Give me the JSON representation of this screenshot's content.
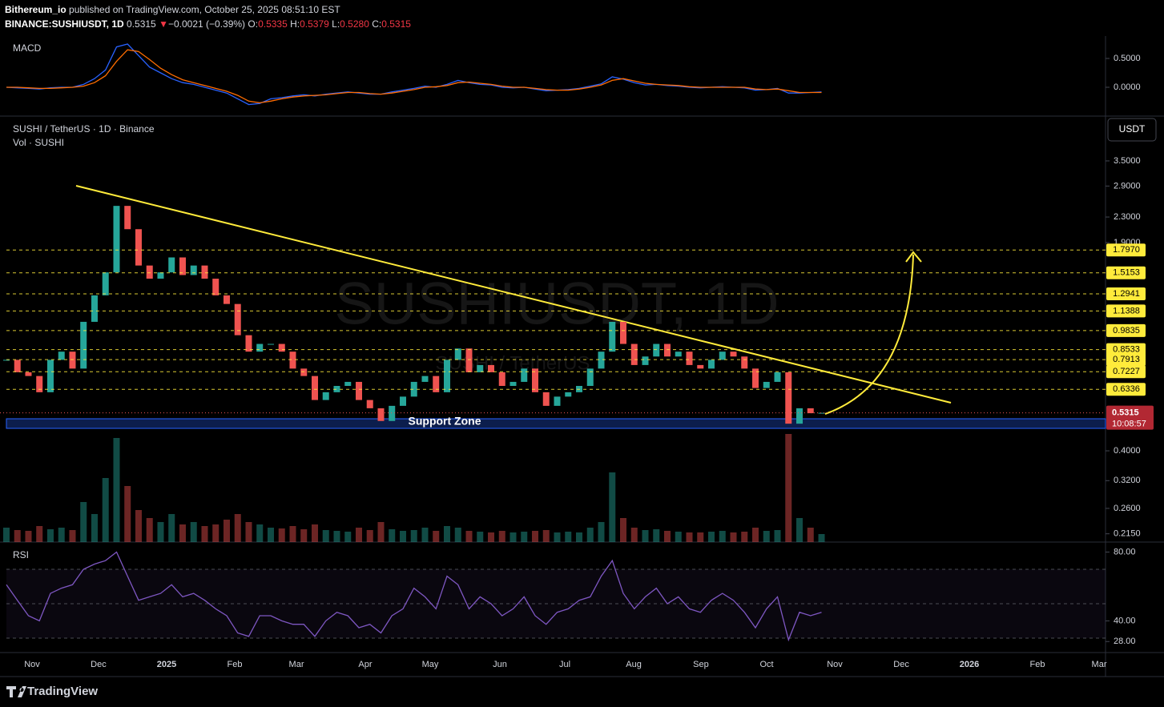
{
  "header": {
    "author": "Bithereum_io",
    "published": "published on TradingView.com, October 25, 2025 08:51:10 EST",
    "symbol": "BINANCE:SUSHIUSDT, 1D",
    "last": "0.5315",
    "change_arrow": "▼",
    "change": "−0.0021 (−0.39%)",
    "ohlc": [
      {
        "label": "O:",
        "value": "0.5335"
      },
      {
        "label": "H:",
        "value": "0.5379"
      },
      {
        "label": "L:",
        "value": "0.5280"
      },
      {
        "label": "C:",
        "value": "0.5315"
      }
    ]
  },
  "watermark": {
    "title": "SUSHIUSDT, 1D",
    "subtitle": "SUSHI / TetherUS"
  },
  "footer": {
    "brand": "TradingView"
  },
  "chart_data": [
    {
      "type": "candlestick",
      "title": "SUSHI / TetherUS · 1D · Binance",
      "currency": "USDT",
      "log_scale": true,
      "colors": {
        "up": "#26a69a",
        "down": "#ef5350"
      },
      "values": [
        0.79,
        0.72,
        0.7,
        0.62,
        0.79,
        0.84,
        0.74,
        1.05,
        1.28,
        1.52,
        2.5,
        2.1,
        1.6,
        1.45,
        1.52,
        1.7,
        1.49,
        1.6,
        1.45,
        1.28,
        1.2,
        0.95,
        0.84,
        0.89,
        0.89,
        0.84,
        0.74,
        0.7,
        0.585,
        0.62,
        0.65,
        0.67,
        0.585,
        0.55,
        0.5,
        0.56,
        0.6,
        0.67,
        0.7,
        0.62,
        0.79,
        0.86,
        0.72,
        0.76,
        0.72,
        0.65,
        0.67,
        0.74,
        0.62,
        0.56,
        0.6,
        0.62,
        0.65,
        0.74,
        0.84,
        1.05,
        0.89,
        0.76,
        0.81,
        0.89,
        0.81,
        0.84,
        0.76,
        0.74,
        0.79,
        0.84,
        0.81,
        0.74,
        0.64,
        0.67,
        0.72,
        0.49,
        0.55,
        0.53,
        0.5315
      ],
      "xlim": [
        -0.58,
        99.78
      ],
      "xticks": [
        {
          "value": 2.33,
          "label": "Nov"
        },
        {
          "value": 8.36,
          "label": "Dec"
        },
        {
          "value": 14.55,
          "label": "2025"
        },
        {
          "value": 20.73,
          "label": "Feb"
        },
        {
          "value": 26.33,
          "label": "Mar"
        },
        {
          "value": 32.58,
          "label": "Apr"
        },
        {
          "value": 38.47,
          "label": "May"
        },
        {
          "value": 44.8,
          "label": "Jun"
        },
        {
          "value": 50.69,
          "label": "Jul"
        },
        {
          "value": 56.95,
          "label": "Aug"
        },
        {
          "value": 63.05,
          "label": "Sep"
        },
        {
          "value": 69.02,
          "label": "Oct"
        },
        {
          "value": 75.2,
          "label": "Nov"
        },
        {
          "value": 81.24,
          "label": "Dec"
        },
        {
          "value": 87.42,
          "label": "2026"
        },
        {
          "value": 93.6,
          "label": "Feb"
        },
        {
          "value": 99.2,
          "label": "Mar"
        }
      ],
      "ylim": [
        0.2021,
        4.894
      ],
      "yticks": [
        {
          "value": 3.5,
          "label": "3.5000"
        },
        {
          "value": 2.9,
          "label": "2.9000"
        },
        {
          "value": 2.3,
          "label": "2.3000"
        },
        {
          "value": 1.9,
          "label": "1.9000"
        },
        {
          "value": 0.4,
          "label": "0.4000"
        },
        {
          "value": 0.32,
          "label": "0.3200"
        },
        {
          "value": 0.26,
          "label": "0.2600"
        },
        {
          "value": 0.215,
          "label": "0.2150"
        }
      ],
      "level_color": "#ffeb3b",
      "levels": [
        {
          "value": 1.797,
          "label": "1.7970"
        },
        {
          "value": 1.5153,
          "label": "1.5153"
        },
        {
          "value": 1.2941,
          "label": "1.2941"
        },
        {
          "value": 1.1388,
          "label": "1.1388"
        },
        {
          "value": 0.9835,
          "label": "0.9835"
        },
        {
          "value": 0.8533,
          "label": "0.8533"
        },
        {
          "value": 0.7913,
          "label": "0.7913"
        },
        {
          "value": 0.7227,
          "label": "0.7227"
        },
        {
          "value": 0.6336,
          "label": "0.6336"
        }
      ],
      "last_price": {
        "value": 0.5315,
        "label": "0.5315"
      },
      "countdown": "10:08:57",
      "annotation": "Support Zone"
    },
    {
      "type": "bar",
      "title": "Vol · SUSHI",
      "ylim": [
        0,
        140
      ],
      "values": [
        18,
        15,
        14,
        20,
        16,
        18,
        15,
        50,
        35,
        80,
        130,
        70,
        40,
        30,
        25,
        35,
        22,
        25,
        20,
        22,
        28,
        35,
        25,
        22,
        18,
        17,
        20,
        16,
        22,
        15,
        14,
        13,
        18,
        15,
        25,
        16,
        14,
        15,
        18,
        14,
        20,
        18,
        14,
        13,
        12,
        14,
        12,
        13,
        14,
        15,
        12,
        13,
        12,
        18,
        25,
        87,
        30,
        18,
        15,
        16,
        14,
        13,
        12,
        12,
        13,
        14,
        12,
        13,
        18,
        14,
        15,
        135,
        30,
        18,
        10
      ]
    },
    {
      "type": "line",
      "title": "MACD",
      "ylim": [
        -0.5,
        0.889
      ],
      "yticks": [
        {
          "value": 0.5,
          "label": "0.5000"
        },
        {
          "value": 0,
          "label": "0.0000"
        }
      ],
      "series": [
        {
          "color": "#2962ff",
          "values": [
            0,
            -0.01,
            -0.02,
            -0.03,
            -0.01,
            0,
            0,
            0.05,
            0.15,
            0.3,
            0.7,
            0.75,
            0.55,
            0.35,
            0.25,
            0.15,
            0.08,
            0.05,
            0,
            -0.05,
            -0.1,
            -0.2,
            -0.3,
            -0.28,
            -0.2,
            -0.18,
            -0.15,
            -0.13,
            -0.15,
            -0.12,
            -0.1,
            -0.08,
            -0.1,
            -0.12,
            -0.12,
            -0.08,
            -0.05,
            -0.02,
            0.02,
            0,
            0.05,
            0.12,
            0.08,
            0.05,
            0.04,
            0,
            -0.01,
            0,
            -0.03,
            -0.06,
            -0.05,
            -0.04,
            -0.02,
            0.02,
            0.06,
            0.18,
            0.14,
            0.08,
            0.04,
            0.05,
            0.03,
            0.02,
            0,
            -0.01,
            0,
            0.01,
            0,
            -0.01,
            -0.05,
            -0.04,
            -0.02,
            -0.1,
            -0.1,
            -0.09,
            -0.08
          ]
        },
        {
          "color": "#ff6d00",
          "values": [
            0,
            0,
            -0.01,
            -0.02,
            -0.02,
            -0.01,
            0,
            0.02,
            0.08,
            0.2,
            0.45,
            0.65,
            0.62,
            0.48,
            0.33,
            0.22,
            0.13,
            0.08,
            0.03,
            -0.02,
            -0.07,
            -0.14,
            -0.24,
            -0.27,
            -0.24,
            -0.2,
            -0.17,
            -0.15,
            -0.14,
            -0.13,
            -0.11,
            -0.09,
            -0.09,
            -0.11,
            -0.12,
            -0.1,
            -0.07,
            -0.04,
            0,
            0.01,
            0.03,
            0.08,
            0.09,
            0.07,
            0.05,
            0.02,
            0,
            0,
            -0.02,
            -0.04,
            -0.05,
            -0.05,
            -0.03,
            0,
            0.04,
            0.12,
            0.15,
            0.11,
            0.07,
            0.05,
            0.04,
            0.03,
            0.01,
            0,
            0,
            0,
            0,
            0,
            -0.03,
            -0.04,
            -0.03,
            -0.06,
            -0.09,
            -0.09,
            -0.09
          ]
        }
      ]
    },
    {
      "type": "line",
      "title": "RSI",
      "ylim": [
        21.6,
        85.8
      ],
      "color": "#7e57c2",
      "bands": [
        70,
        50,
        30
      ],
      "yticks": [
        {
          "value": 80,
          "label": "80.00"
        },
        {
          "value": 40,
          "label": "40.00"
        },
        {
          "value": 28,
          "label": "28.00"
        }
      ],
      "values": [
        61,
        52,
        43,
        40,
        56,
        59,
        61,
        70,
        73,
        75,
        80,
        66,
        52,
        54,
        56,
        61,
        54,
        56,
        52,
        47,
        43,
        33,
        31,
        43,
        43,
        40,
        38,
        38,
        31,
        40,
        45,
        43,
        36,
        38,
        33,
        43,
        47,
        59,
        54,
        47,
        66,
        61,
        47,
        54,
        50,
        43,
        47,
        54,
        43,
        38,
        45,
        47,
        52,
        54,
        66,
        75,
        56,
        47,
        54,
        59,
        50,
        54,
        47,
        45,
        52,
        56,
        52,
        45,
        36,
        47,
        54,
        29,
        45,
        43,
        45
      ]
    }
  ]
}
